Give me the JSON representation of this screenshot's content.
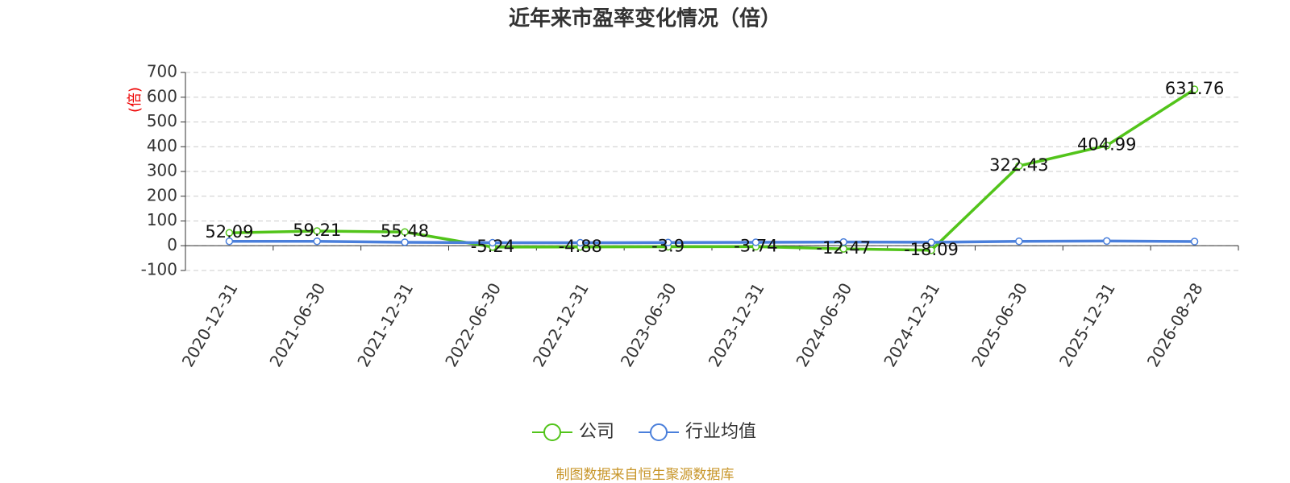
{
  "chart_data": {
    "type": "line",
    "title": "近年来市盈率变化情况（倍）",
    "y_axis_label": "(倍)",
    "categories": [
      "2020-12-31",
      "2021-06-30",
      "2021-12-31",
      "2022-06-30",
      "2022-12-31",
      "2023-06-30",
      "2023-12-31",
      "2024-06-30",
      "2024-12-31",
      "2025-06-30",
      "2025-12-31",
      "2026-08-28"
    ],
    "series": [
      {
        "name": "公司",
        "color": "#52c41a",
        "values": [
          52.09,
          59.21,
          55.48,
          -5.24,
          -4.88,
          -3.9,
          -3.74,
          -12.47,
          -18.09,
          322.43,
          404.99,
          631.76
        ]
      },
      {
        "name": "行业均值",
        "color": "#4a7fdb",
        "values": [
          18,
          18,
          14,
          12,
          12,
          13,
          14,
          15,
          14,
          18,
          19,
          17
        ]
      }
    ],
    "ylim": [
      -100,
      700
    ],
    "yticks": [
      -100,
      0,
      100,
      200,
      300,
      400,
      500,
      600,
      700
    ],
    "grid": true,
    "source": "制图数据来自恒生聚源数据库"
  }
}
